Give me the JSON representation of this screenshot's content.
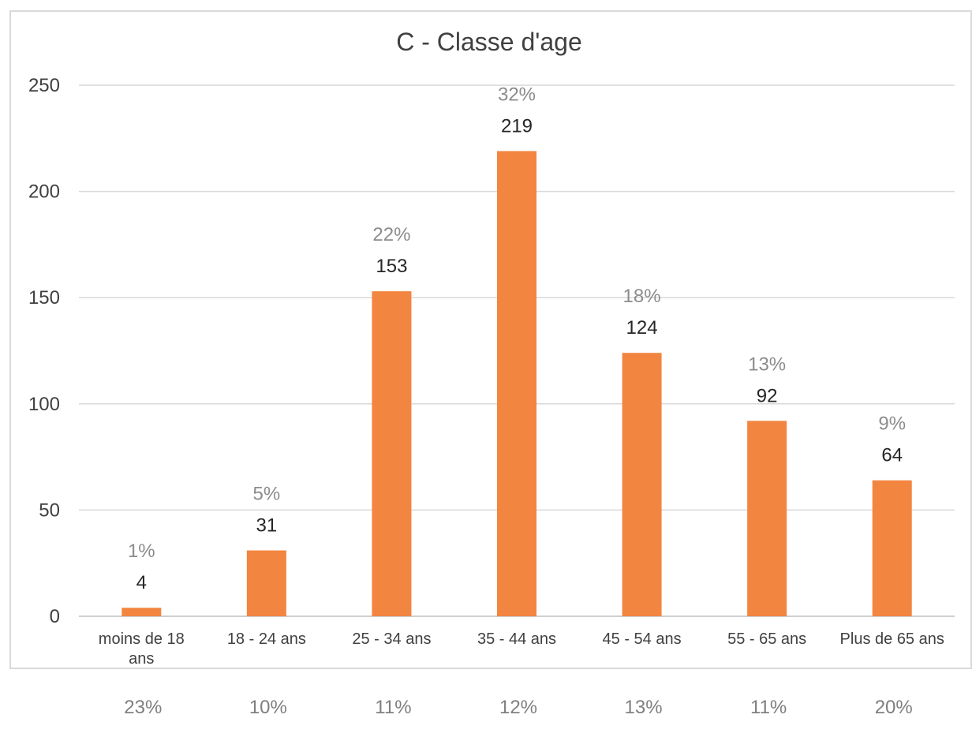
{
  "chart_data": {
    "type": "bar",
    "title": "C - Classe d'age",
    "xlabel": "",
    "ylabel": "",
    "categories": [
      "moins de 18 ans",
      "18 - 24 ans",
      "25 - 34 ans",
      "35 - 44 ans",
      "45 - 54 ans",
      "55 - 65 ans",
      "Plus de 65 ans"
    ],
    "values": [
      4,
      31,
      153,
      219,
      124,
      92,
      64
    ],
    "value_labels": [
      "4",
      "31",
      "153",
      "219",
      "124",
      "92",
      "64"
    ],
    "percent_labels": [
      "1%",
      "5%",
      "22%",
      "32%",
      "18%",
      "13%",
      "9%"
    ],
    "ylim": [
      0,
      250
    ],
    "yticks": [
      0,
      50,
      100,
      150,
      200,
      250
    ],
    "grid": true,
    "legend": "none",
    "bar_color": "#f28540"
  },
  "bottom_row": [
    "23%",
    "10%",
    "11%",
    "12%",
    "13%",
    "11%",
    "20%"
  ]
}
